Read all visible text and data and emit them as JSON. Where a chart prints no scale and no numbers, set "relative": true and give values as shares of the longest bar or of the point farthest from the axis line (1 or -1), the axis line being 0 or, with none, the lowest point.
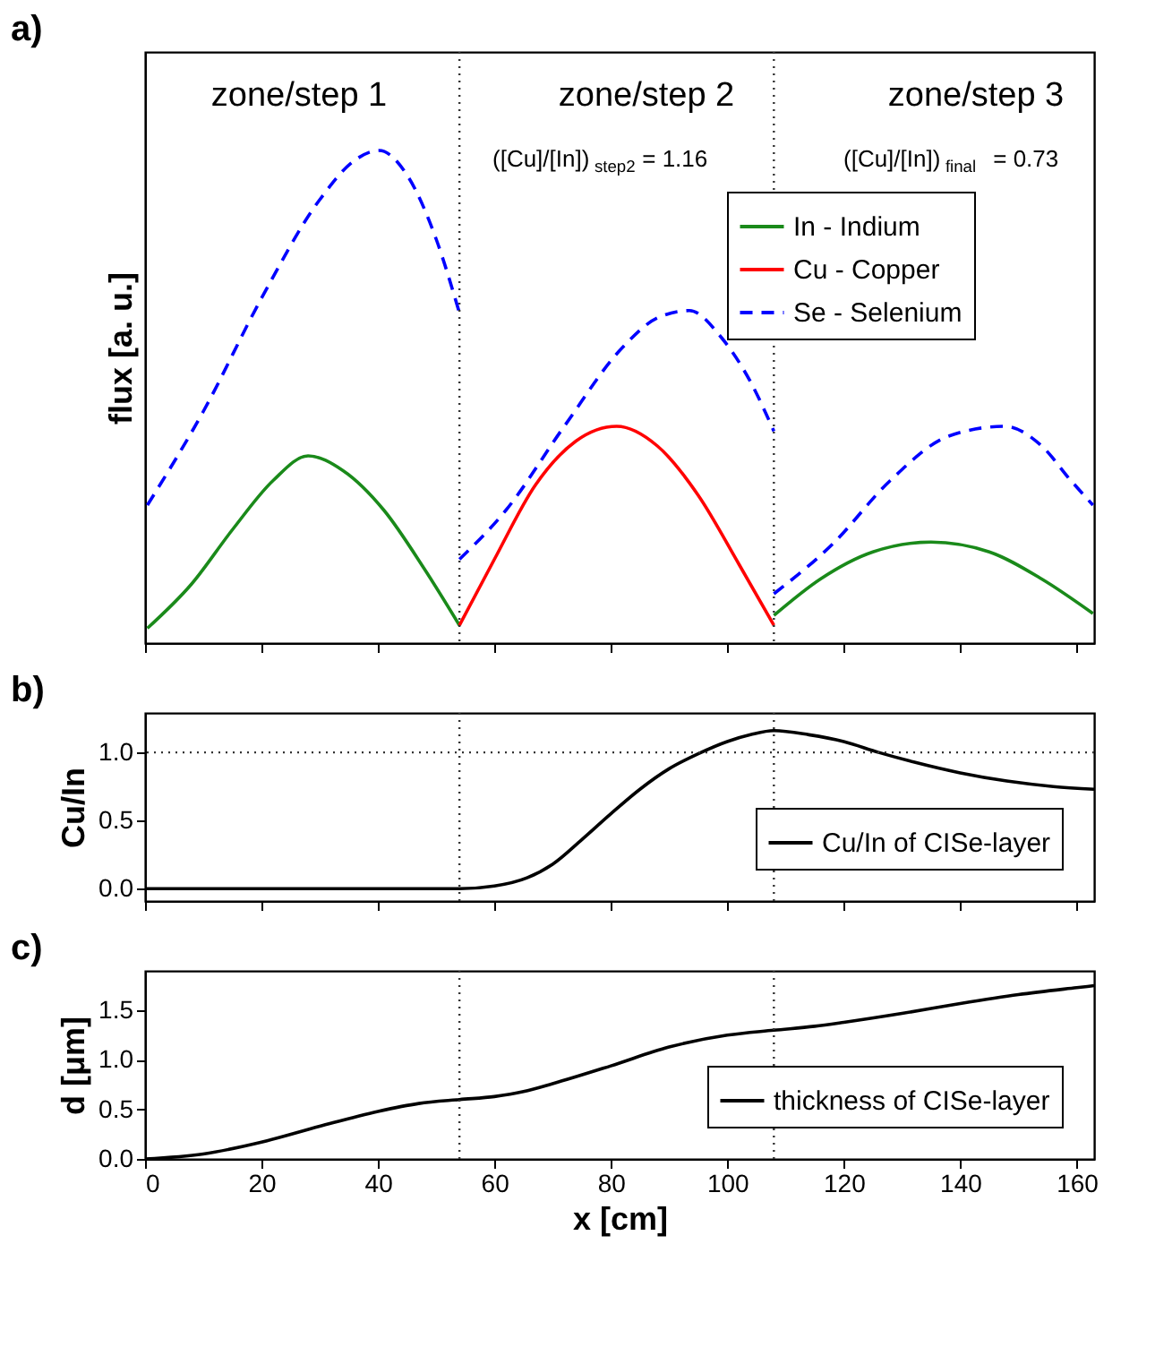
{
  "chart_data": [
    {
      "type": "line",
      "title": "a)",
      "ylabel": "flux [a. u.]",
      "relative": true,
      "tick_labels": false,
      "legend": "top right",
      "xlim": [
        0,
        163
      ],
      "xticks": [
        0,
        20,
        40,
        60,
        80,
        100,
        120,
        140,
        160
      ],
      "series": [
        {
          "name": "In - Indium",
          "color": "#1a8a1a",
          "x": [
            0.4,
            8,
            15,
            22,
            28,
            34,
            41,
            48,
            54,
            81,
            108,
            116,
            125,
            135,
            145,
            154,
            162.8
          ],
          "values": [
            0.03,
            0.12,
            0.23,
            0.33,
            0.38,
            0.35,
            0.27,
            0.15,
            0.036,
            null,
            0.056,
            0.13,
            0.185,
            0.205,
            0.185,
            0.13,
            0.06
          ]
        },
        {
          "name": "Cu - Copper",
          "color": "#ff0000",
          "x": [
            54,
            60,
            67,
            74,
            81,
            88,
            95,
            102,
            108
          ],
          "values": [
            0.036,
            0.17,
            0.32,
            0.41,
            0.44,
            0.4,
            0.3,
            0.16,
            0.036
          ]
        },
        {
          "name": "Se - Selenium",
          "color": "#0000ff",
          "line_style": "dashed",
          "x": [
            0.4,
            10,
            20,
            30,
            36,
            40.2,
            45,
            50,
            54,
            54,
            62,
            72,
            82,
            88,
            93.5,
            99,
            104,
            108,
            108,
            118,
            128,
            138,
            147.6,
            154,
            159,
            162.8
          ],
          "values": [
            0.28,
            0.47,
            0.7,
            0.9,
            0.98,
            1.0,
            0.95,
            0.82,
            0.67,
            0.17,
            0.27,
            0.44,
            0.6,
            0.66,
            0.675,
            0.62,
            0.53,
            0.43,
            0.1,
            0.2,
            0.33,
            0.42,
            0.44,
            0.4,
            0.33,
            0.28
          ]
        }
      ],
      "ref_lines": [
        {
          "axis": "x",
          "value": 54,
          "line_style": "dotted"
        },
        {
          "axis": "x",
          "value": 108,
          "line_style": "dotted"
        }
      ],
      "annotations": [
        "zone/step 1",
        "zone/step 2",
        "zone/step 3",
        "([Cu]/[In])$_{step2}$ = 1.16",
        "([Cu]/[In])$_{final}$ = 0.73"
      ]
    },
    {
      "type": "line",
      "title": "b)",
      "ylabel": "Cu/In",
      "tick_labels": "y",
      "legend": "bottom right",
      "xlim": [
        0,
        163
      ],
      "xticks": [
        0,
        20,
        40,
        60,
        80,
        100,
        120,
        140,
        160
      ],
      "ylim": [
        -0.09,
        1.29
      ],
      "yticks": [
        {
          "value": 0,
          "label": "0.0"
        },
        {
          "value": 0.5,
          "label": "0.5"
        },
        {
          "value": 1,
          "label": "1.0"
        }
      ],
      "series": [
        {
          "name": "Cu/In of CISe-layer",
          "color": "#000000",
          "x": [
            0,
            20,
            40,
            54,
            60,
            65.6,
            70,
            75,
            80,
            85,
            90,
            95,
            100,
            104,
            108,
            114,
            120,
            126,
            132,
            140,
            148,
            156,
            163
          ],
          "values": [
            0,
            0,
            0,
            0,
            0.02,
            0.08,
            0.18,
            0.36,
            0.55,
            0.73,
            0.88,
            0.99,
            1.08,
            1.13,
            1.16,
            1.13,
            1.08,
            1.0,
            0.93,
            0.85,
            0.79,
            0.75,
            0.73
          ]
        }
      ],
      "ref_lines": [
        {
          "axis": "x",
          "value": 54,
          "line_style": "dotted"
        },
        {
          "axis": "x",
          "value": 108,
          "line_style": "dotted"
        },
        {
          "axis": "y",
          "value": 1,
          "line_style": "dotted"
        }
      ]
    },
    {
      "type": "line",
      "title": "c)",
      "xlabel": "x [cm]",
      "ylabel": "d [μm]",
      "legend": "bottom right",
      "xlim": [
        0,
        163
      ],
      "xticks": [
        0,
        20,
        40,
        60,
        80,
        100,
        120,
        140,
        160
      ],
      "ylim": [
        0,
        1.9
      ],
      "yticks": [
        {
          "value": 0,
          "label": "0.0"
        },
        {
          "value": 0.5,
          "label": "0.5"
        },
        {
          "value": 1,
          "label": "1.0"
        },
        {
          "value": 1.5,
          "label": "1.5"
        }
      ],
      "series": [
        {
          "name": "thickness of CISe-layer",
          "color": "#000000",
          "x": [
            0,
            10,
            20,
            30,
            40,
            47,
            54,
            60,
            65,
            70,
            80,
            90,
            100,
            108,
            115,
            120,
            130,
            140,
            150,
            160,
            163
          ],
          "values": [
            0,
            0.05,
            0.17,
            0.33,
            0.48,
            0.56,
            0.6,
            0.63,
            0.68,
            0.76,
            0.94,
            1.13,
            1.25,
            1.3,
            1.34,
            1.38,
            1.47,
            1.57,
            1.66,
            1.73,
            1.75
          ]
        }
      ],
      "ref_lines": [
        {
          "axis": "x",
          "value": 54,
          "line_style": "dotted"
        },
        {
          "axis": "x",
          "value": 108,
          "line_style": "dotted"
        }
      ]
    }
  ]
}
